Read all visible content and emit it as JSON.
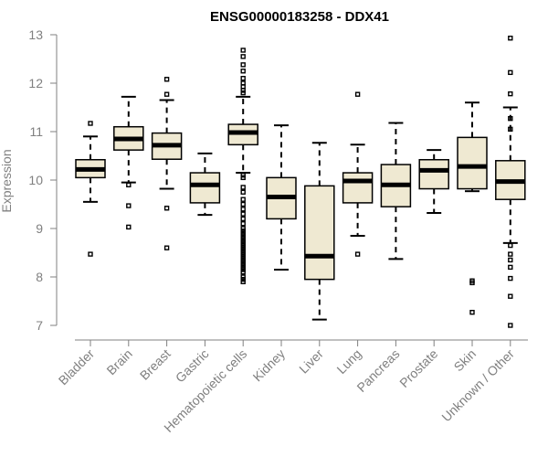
{
  "chart_data": {
    "type": "boxplot",
    "title": "ENSG00000183258 - DDX41",
    "xlabel": "",
    "ylabel": "Expression",
    "ylim": [
      7,
      13
    ],
    "yticks": [
      "7",
      "8",
      "9",
      "10",
      "11",
      "12",
      "13"
    ],
    "grid": false,
    "colors": {
      "box_fill": "#efe9d2",
      "box_stroke": "#000000",
      "median": "#000000",
      "axis": "#808080",
      "tick_label": "#808080"
    },
    "categories": [
      "Bladder",
      "Brain",
      "Breast",
      "Gastric",
      "Hematopoietic cells",
      "Kidney",
      "Liver",
      "Lung",
      "Pancreas",
      "Prostate",
      "Skin",
      "Unknown / Other"
    ],
    "boxes": [
      {
        "category": "Bladder",
        "whisker_low": 9.55,
        "q1": 10.05,
        "median": 10.22,
        "q3": 10.42,
        "whisker_high": 10.9,
        "outliers": [
          11.17,
          8.47
        ]
      },
      {
        "category": "Brain",
        "whisker_low": 9.95,
        "q1": 10.62,
        "median": 10.85,
        "q3": 11.1,
        "whisker_high": 11.72,
        "outliers": [
          9.9,
          9.47,
          9.03
        ]
      },
      {
        "category": "Breast",
        "whisker_low": 9.82,
        "q1": 10.43,
        "median": 10.72,
        "q3": 10.97,
        "whisker_high": 11.65,
        "outliers": [
          12.08,
          11.77,
          9.42,
          8.6
        ]
      },
      {
        "category": "Gastric",
        "whisker_low": 9.28,
        "q1": 9.53,
        "median": 9.9,
        "q3": 10.15,
        "whisker_high": 10.55,
        "outliers": []
      },
      {
        "category": "Hematopoietic cells",
        "whisker_low": 10.15,
        "q1": 10.73,
        "median": 10.98,
        "q3": 11.15,
        "whisker_high": 11.72,
        "outliers": [
          12.68,
          12.55,
          12.38,
          12.25,
          12.1,
          12.0,
          11.93,
          11.85,
          11.8,
          10.1,
          10.05,
          9.85,
          9.75,
          9.6,
          9.5,
          9.4,
          9.3,
          9.2,
          9.1,
          9.0,
          8.95,
          8.9,
          8.85,
          8.8,
          8.75,
          8.7,
          8.65,
          8.6,
          8.55,
          8.5,
          8.45,
          8.4,
          8.35,
          8.3,
          8.25,
          8.2,
          8.15,
          8.1,
          8.0,
          7.95,
          7.9
        ]
      },
      {
        "category": "Kidney",
        "whisker_low": 8.15,
        "q1": 9.2,
        "median": 9.65,
        "q3": 10.05,
        "whisker_high": 11.13,
        "outliers": []
      },
      {
        "category": "Liver",
        "whisker_low": 7.12,
        "q1": 7.95,
        "median": 8.43,
        "q3": 9.88,
        "whisker_high": 10.77,
        "outliers": []
      },
      {
        "category": "Lung",
        "whisker_low": 8.85,
        "q1": 9.53,
        "median": 9.98,
        "q3": 10.15,
        "whisker_high": 10.73,
        "outliers": [
          11.77,
          8.47
        ]
      },
      {
        "category": "Pancreas",
        "whisker_low": 8.37,
        "q1": 9.45,
        "median": 9.9,
        "q3": 10.32,
        "whisker_high": 11.18,
        "outliers": []
      },
      {
        "category": "Prostate",
        "whisker_low": 9.32,
        "q1": 9.82,
        "median": 10.2,
        "q3": 10.42,
        "whisker_high": 10.62,
        "outliers": []
      },
      {
        "category": "Skin",
        "whisker_low": 9.77,
        "q1": 9.82,
        "median": 10.28,
        "q3": 10.88,
        "whisker_high": 11.6,
        "outliers": [
          7.92,
          7.88,
          7.27
        ]
      },
      {
        "category": "Unknown / Other",
        "whisker_low": 8.7,
        "q1": 9.6,
        "median": 9.97,
        "q3": 10.4,
        "whisker_high": 11.5,
        "outliers": [
          12.93,
          12.22,
          11.78,
          11.27,
          11.05,
          8.65,
          8.47,
          8.35,
          8.2,
          7.97,
          7.6,
          7.0
        ]
      }
    ]
  }
}
